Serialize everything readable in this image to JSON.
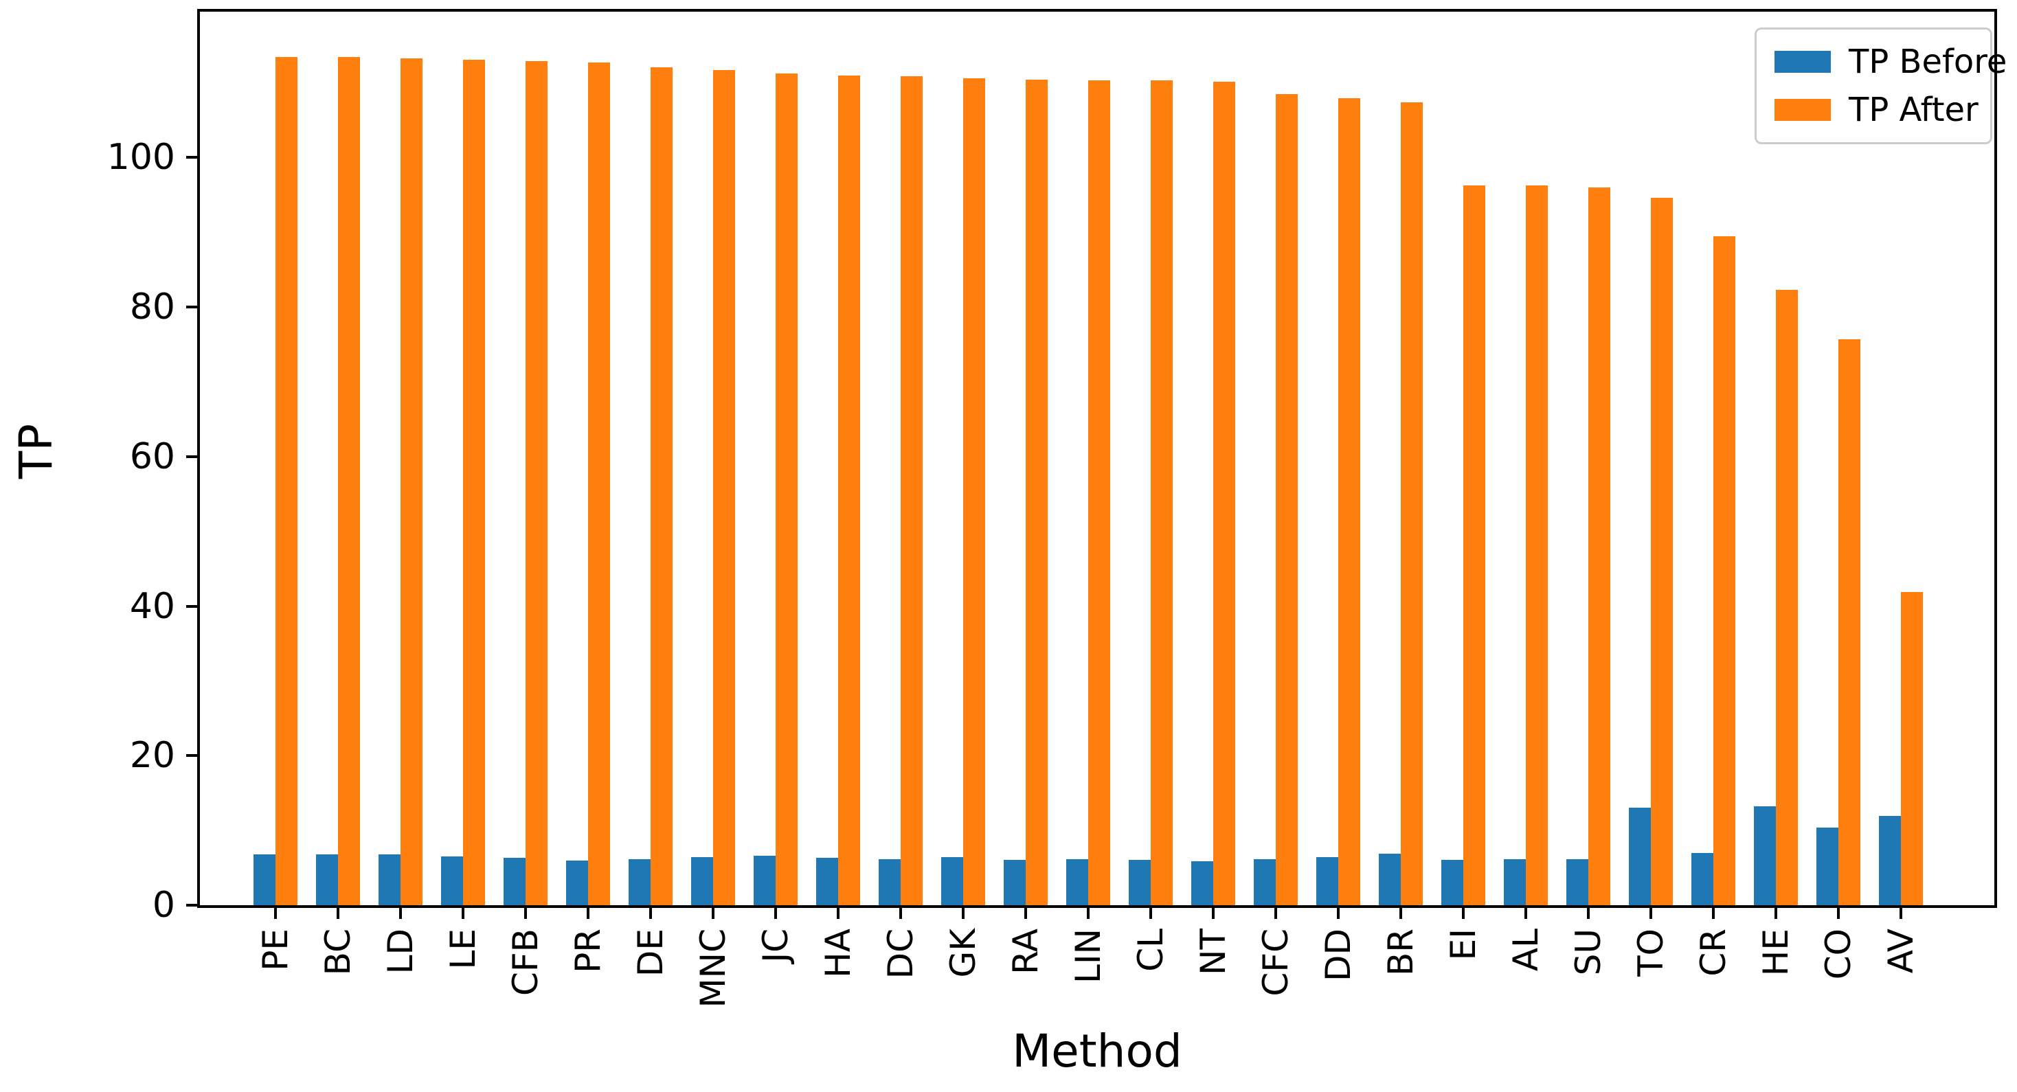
{
  "chart_data": {
    "type": "bar",
    "title": "",
    "xlabel": "Method",
    "ylabel": "TP",
    "categories": [
      "PE",
      "BC",
      "LD",
      "LE",
      "CFB",
      "PR",
      "DE",
      "MNC",
      "JC",
      "HA",
      "DC",
      "GK",
      "RA",
      "LIN",
      "CL",
      "NT",
      "CFC",
      "DD",
      "BR",
      "EI",
      "AL",
      "SU",
      "TO",
      "CR",
      "HE",
      "CO",
      "AV"
    ],
    "series": [
      {
        "name": "TP Before",
        "color": "#1f77b4",
        "values": [
          6.8,
          6.8,
          6.8,
          6.5,
          6.3,
          6.0,
          6.2,
          6.4,
          6.6,
          6.3,
          6.2,
          6.4,
          6.1,
          6.2,
          6.1,
          5.9,
          6.2,
          6.4,
          6.9,
          6.1,
          6.2,
          6.2,
          13.0,
          7.0,
          13.2,
          10.4,
          11.9
        ]
      },
      {
        "name": "TP After",
        "color": "#ff7f0e",
        "values": [
          113.4,
          113.4,
          113.3,
          113.1,
          112.9,
          112.7,
          112.1,
          111.7,
          111.2,
          111.0,
          110.9,
          110.6,
          110.4,
          110.3,
          110.3,
          110.1,
          108.5,
          107.9,
          107.4,
          96.3,
          96.3,
          96.0,
          94.6,
          89.5,
          82.3,
          75.7,
          41.9
        ]
      }
    ],
    "ylim": [
      0,
      119.5
    ],
    "yticks": [
      0,
      20,
      40,
      60,
      80,
      100
    ],
    "legend_position": "upper right",
    "grid": false,
    "axis_color": "#000000",
    "background": "#ffffff"
  }
}
